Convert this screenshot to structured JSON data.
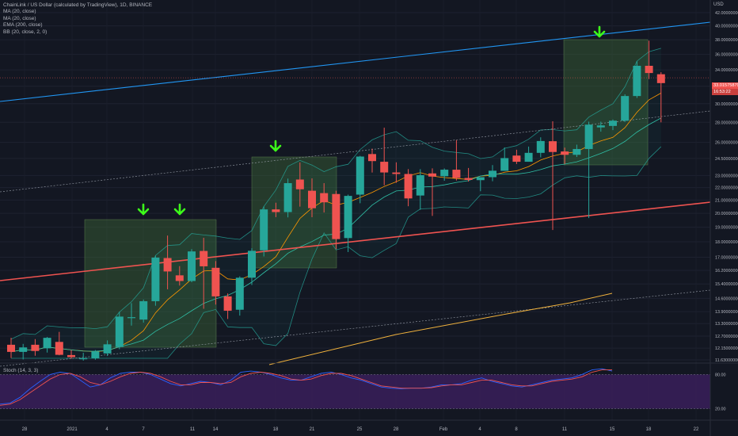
{
  "legend": {
    "title": "ChainLink / US Dollar (calculated by TradingView), 1D, BINANCE",
    "ma1": "MA (20, close)",
    "ma2": "MA (20, close)",
    "ema": "EMA (200, close)",
    "bb": "BB (20, close, 2, 0)"
  },
  "stoch_label": "Stoch (14, 3, 3)",
  "currency": "USD",
  "last_price": "33.01575879",
  "countdown": "16:53:22",
  "colors": {
    "background": "#131722",
    "up": "#26a69a",
    "down": "#ef5350",
    "channel_blue": "#2196f3",
    "support_red": "#ef5350",
    "ema": "#f2b33d",
    "ma_orange": "#ff9800",
    "bb": "#26a69a",
    "stoch_k": "#2962ff",
    "stoch_d": "#ef5350",
    "stoch_bg": "#3a1f5a",
    "arrow": "#3dff1a",
    "zone": "#3e6b3a"
  },
  "chart_data": [
    {
      "type": "candlestick",
      "title": "ChainLink / US Dollar (calculated by TradingView), 1D, BINANCE",
      "y_scale": "log",
      "y_ticks": [
        "42.00000000",
        "40.00000000",
        "38.00000000",
        "36.00000000",
        "34.00000000",
        "32.00000000",
        "30.00000000",
        "28.00000000",
        "26.00000000",
        "24.50000000",
        "23.00000000",
        "22.00000000",
        "21.00000000",
        "20.00000000",
        "19.00000000",
        "18.00000000",
        "17.00000000",
        "16.20000000",
        "15.40000000",
        "14.60000000",
        "13.90000000",
        "13.30000000",
        "12.70000000",
        "12.15000000",
        "11.63000000"
      ],
      "x_ticks": [
        "28",
        "2021",
        "4",
        "7",
        "11",
        "14",
        "18",
        "21",
        "25",
        "28",
        "Feb",
        "4",
        "8",
        "11",
        "15",
        "18",
        "22"
      ],
      "candles": [
        {
          "o": 12.3,
          "h": 12.62,
          "l": 11.71,
          "c": 11.98
        },
        {
          "o": 11.98,
          "h": 12.34,
          "l": 11.65,
          "c": 12.18
        },
        {
          "o": 12.3,
          "h": 12.56,
          "l": 11.81,
          "c": 12.02
        },
        {
          "o": 12.14,
          "h": 12.66,
          "l": 11.95,
          "c": 12.62
        },
        {
          "o": 12.43,
          "h": 12.9,
          "l": 11.83,
          "c": 11.85
        },
        {
          "o": 11.84,
          "h": 12.06,
          "l": 11.68,
          "c": 11.75
        },
        {
          "o": 11.69,
          "h": 11.94,
          "l": 11.6,
          "c": 11.7
        },
        {
          "o": 11.7,
          "h": 12.06,
          "l": 11.64,
          "c": 12.0
        },
        {
          "o": 11.91,
          "h": 12.5,
          "l": 11.8,
          "c": 12.32
        },
        {
          "o": 12.2,
          "h": 13.9,
          "l": 12.1,
          "c": 13.65
        },
        {
          "o": 13.62,
          "h": 14.35,
          "l": 13.2,
          "c": 13.62
        },
        {
          "o": 13.5,
          "h": 14.54,
          "l": 13.35,
          "c": 14.45
        },
        {
          "o": 14.45,
          "h": 17.1,
          "l": 14.21,
          "c": 16.98
        },
        {
          "o": 16.95,
          "h": 18.42,
          "l": 15.1,
          "c": 16.13
        },
        {
          "o": 15.9,
          "h": 16.45,
          "l": 15.31,
          "c": 15.57
        },
        {
          "o": 15.57,
          "h": 17.52,
          "l": 15.5,
          "c": 17.37
        },
        {
          "o": 17.4,
          "h": 18.27,
          "l": 14.05,
          "c": 16.44
        },
        {
          "o": 16.35,
          "h": 16.76,
          "l": 14.27,
          "c": 14.71
        },
        {
          "o": 14.71,
          "h": 14.87,
          "l": 13.53,
          "c": 13.95
        },
        {
          "o": 14.0,
          "h": 15.84,
          "l": 13.7,
          "c": 15.76
        },
        {
          "o": 15.76,
          "h": 17.58,
          "l": 15.34,
          "c": 17.41
        },
        {
          "o": 17.44,
          "h": 20.51,
          "l": 17.05,
          "c": 20.29
        },
        {
          "o": 20.29,
          "h": 20.8,
          "l": 19.72,
          "c": 20.09
        },
        {
          "o": 20.09,
          "h": 22.74,
          "l": 19.7,
          "c": 22.36
        },
        {
          "o": 22.66,
          "h": 24.14,
          "l": 20.5,
          "c": 21.86
        },
        {
          "o": 21.74,
          "h": 22.76,
          "l": 19.71,
          "c": 20.38
        },
        {
          "o": 21.55,
          "h": 22.36,
          "l": 20.06,
          "c": 20.83
        },
        {
          "o": 21.48,
          "h": 21.74,
          "l": 17.52,
          "c": 18.18
        },
        {
          "o": 18.25,
          "h": 21.43,
          "l": 17.33,
          "c": 21.33
        },
        {
          "o": 21.43,
          "h": 24.73,
          "l": 20.76,
          "c": 24.67
        },
        {
          "o": 24.9,
          "h": 25.4,
          "l": 23.26,
          "c": 24.26
        },
        {
          "o": 24.2,
          "h": 27.45,
          "l": 22.19,
          "c": 23.26
        },
        {
          "o": 23.26,
          "h": 24.15,
          "l": 22.39,
          "c": 23.13
        },
        {
          "o": 23.13,
          "h": 23.55,
          "l": 20.53,
          "c": 21.13
        },
        {
          "o": 21.36,
          "h": 23.55,
          "l": 20.26,
          "c": 23.03
        },
        {
          "o": 23.18,
          "h": 23.62,
          "l": 19.81,
          "c": 22.91
        },
        {
          "o": 22.94,
          "h": 23.61,
          "l": 22.56,
          "c": 23.5
        },
        {
          "o": 23.5,
          "h": 26.21,
          "l": 22.58,
          "c": 22.79
        },
        {
          "o": 22.79,
          "h": 23.65,
          "l": 22.49,
          "c": 22.63
        },
        {
          "o": 22.61,
          "h": 22.83,
          "l": 21.7,
          "c": 22.86
        },
        {
          "o": 22.86,
          "h": 23.9,
          "l": 22.52,
          "c": 23.41
        },
        {
          "o": 23.4,
          "h": 25.52,
          "l": 23.4,
          "c": 24.53
        },
        {
          "o": 24.76,
          "h": 25.3,
          "l": 24.0,
          "c": 24.2
        },
        {
          "o": 24.2,
          "h": 25.6,
          "l": 24.2,
          "c": 25.01
        },
        {
          "o": 25.01,
          "h": 26.49,
          "l": 24.6,
          "c": 26.13
        },
        {
          "o": 26.11,
          "h": 28.11,
          "l": 18.8,
          "c": 25.09
        },
        {
          "o": 25.14,
          "h": 25.5,
          "l": 24.0,
          "c": 24.83
        },
        {
          "o": 24.83,
          "h": 25.78,
          "l": 24.63,
          "c": 25.37
        },
        {
          "o": 25.37,
          "h": 28.07,
          "l": 19.65,
          "c": 27.76
        },
        {
          "o": 27.48,
          "h": 28.07,
          "l": 27.05,
          "c": 27.68
        },
        {
          "o": 27.63,
          "h": 28.29,
          "l": 27.21,
          "c": 28.17
        },
        {
          "o": 28.17,
          "h": 31.06,
          "l": 28.04,
          "c": 30.86
        },
        {
          "o": 30.86,
          "h": 35.1,
          "l": 30.64,
          "c": 34.51
        },
        {
          "o": 34.51,
          "h": 37.87,
          "l": 32.86,
          "c": 33.6
        },
        {
          "o": 33.45,
          "h": 33.7,
          "l": 28.0,
          "c": 32.37
        }
      ],
      "annotations": {
        "arrows": [
          "Jan 7",
          "Jan 10",
          "Jan 17",
          "Feb 13"
        ],
        "zones": [
          "Jan 4 - Jan 13",
          "Jan 17 - Jan 23",
          "Feb 12 - Feb 15"
        ]
      }
    },
    {
      "type": "line",
      "title": "Stoch (14, 3, 3)",
      "y_ticks": [
        "80.00",
        "20.00"
      ],
      "ylim": [
        0,
        100
      ],
      "series": [
        {
          "name": "%K",
          "values": [
            28,
            30,
            40,
            55,
            68,
            80,
            84,
            82,
            70,
            58,
            62,
            74,
            82,
            84,
            84,
            80,
            72,
            64,
            60,
            64,
            68,
            66,
            62,
            70,
            84,
            86,
            84,
            80,
            74,
            70,
            70,
            76,
            82,
            84,
            80,
            74,
            70,
            64,
            58,
            56,
            55,
            56,
            56,
            58,
            62,
            62,
            64,
            70,
            74,
            68,
            64,
            60,
            58,
            62,
            66,
            70,
            72,
            74,
            80,
            88,
            90,
            86
          ]
        },
        {
          "name": "%D",
          "values": [
            26,
            28,
            36,
            48,
            60,
            72,
            80,
            82,
            76,
            66,
            62,
            68,
            76,
            82,
            84,
            82,
            76,
            68,
            62,
            62,
            66,
            66,
            64,
            66,
            76,
            82,
            84,
            82,
            78,
            72,
            70,
            72,
            78,
            82,
            82,
            78,
            72,
            66,
            60,
            58,
            56,
            56,
            56,
            57,
            60,
            62,
            62,
            66,
            70,
            70,
            66,
            62,
            60,
            60,
            64,
            68,
            70,
            72,
            76,
            84,
            88,
            88
          ]
        }
      ]
    }
  ]
}
